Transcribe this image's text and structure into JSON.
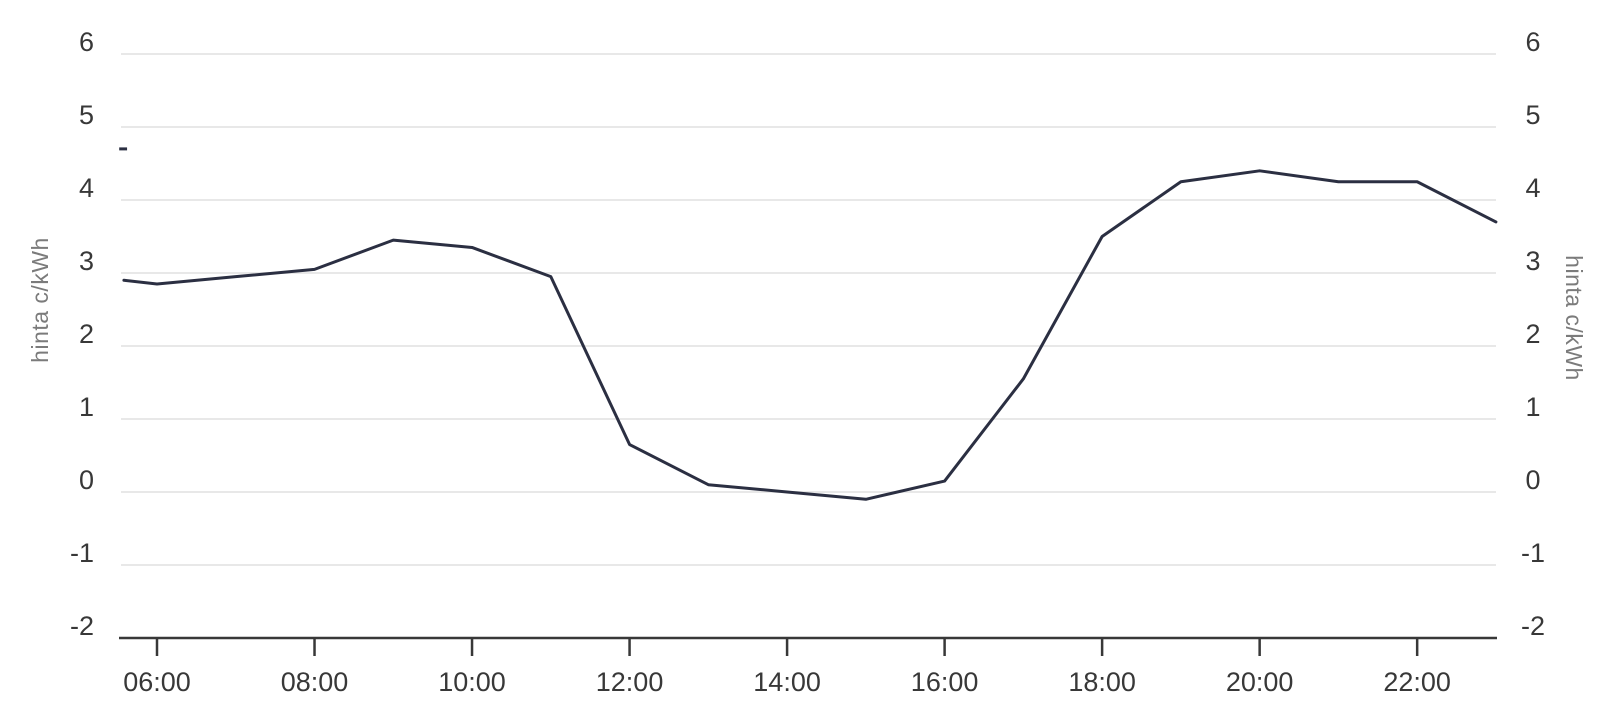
{
  "chart_data": {
    "type": "line",
    "title": "",
    "ylabel_left": "hinta c/kWh",
    "ylabel_right": "hinta c/kWh",
    "xlabel": "",
    "y_ticks": [
      6,
      5,
      4,
      3,
      2,
      1,
      0,
      -1,
      -2
    ],
    "x_ticks": [
      "06:00",
      "08:00",
      "10:00",
      "12:00",
      "14:00",
      "16:00",
      "18:00",
      "20:00",
      "22:00"
    ],
    "ylim": [
      -2,
      6.4
    ],
    "x_start": "05:35",
    "x_end": "23:00",
    "grid": true,
    "legend": false,
    "series": [
      {
        "name": "hinta",
        "points": [
          {
            "time": "05:35",
            "hour": 5.58,
            "value": 2.9
          },
          {
            "time": "06:00",
            "hour": 6,
            "value": 2.85
          },
          {
            "time": "07:00",
            "hour": 7,
            "value": 2.95
          },
          {
            "time": "08:00",
            "hour": 8,
            "value": 3.05
          },
          {
            "time": "09:00",
            "hour": 9,
            "value": 3.45
          },
          {
            "time": "10:00",
            "hour": 10,
            "value": 3.35
          },
          {
            "time": "11:00",
            "hour": 11,
            "value": 2.95
          },
          {
            "time": "12:00",
            "hour": 12,
            "value": 0.65
          },
          {
            "time": "13:00",
            "hour": 13,
            "value": 0.1
          },
          {
            "time": "14:00",
            "hour": 14,
            "value": 0
          },
          {
            "time": "15:00",
            "hour": 15,
            "value": -0.1
          },
          {
            "time": "16:00",
            "hour": 16,
            "value": 0.15
          },
          {
            "time": "17:00",
            "hour": 17,
            "value": 1.55
          },
          {
            "time": "18:00",
            "hour": 18,
            "value": 3.5
          },
          {
            "time": "19:00",
            "hour": 19,
            "value": 4.25
          },
          {
            "time": "20:00",
            "hour": 20,
            "value": 4.4
          },
          {
            "time": "21:00",
            "hour": 21,
            "value": 4.25
          },
          {
            "time": "22:00",
            "hour": 22,
            "value": 4.25
          },
          {
            "time": "23:00",
            "hour": 23,
            "value": 3.7
          }
        ]
      }
    ],
    "annotations": [
      {
        "type": "dash",
        "hour_start": 5.52,
        "hour_end": 5.62,
        "value": 4.7
      }
    ],
    "colors": {
      "line": "#2b2f42",
      "grid": "#e8e8e8",
      "axis": "#383838",
      "tick_label": "#383838",
      "axis_title": "#7b7b7b",
      "background": "#ffffff"
    }
  }
}
